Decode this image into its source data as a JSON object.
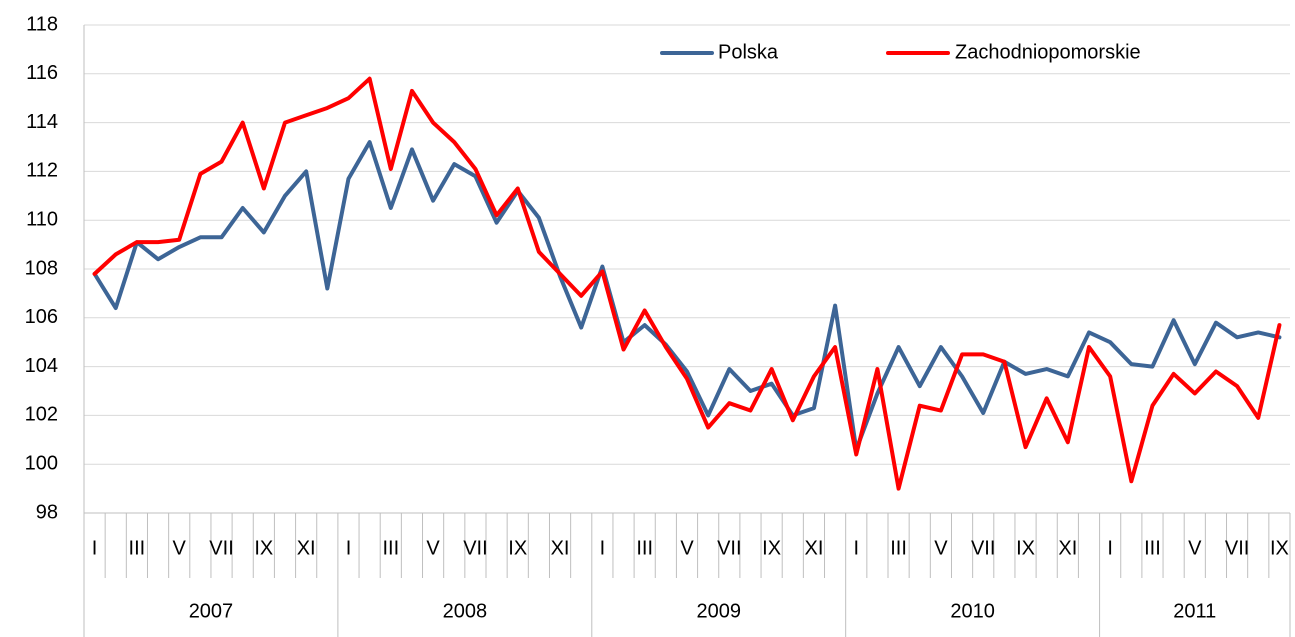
{
  "chart_data": {
    "type": "line",
    "categories": [
      "I",
      null,
      "III",
      null,
      "V",
      null,
      "VII",
      null,
      "IX",
      null,
      "XI",
      null,
      "I",
      null,
      "III",
      null,
      "V",
      null,
      "VII",
      null,
      "IX",
      null,
      "XI",
      null,
      "I",
      null,
      "III",
      null,
      "V",
      null,
      "VII",
      null,
      "IX",
      null,
      "XI",
      null,
      "I",
      null,
      "III",
      null,
      "V",
      null,
      "VII",
      null,
      "IX",
      null,
      "XI",
      null,
      "I",
      null,
      "III",
      null,
      "V",
      null,
      "VII",
      null,
      "IX"
    ],
    "category_groups": [
      "2007",
      "2008",
      "2009",
      "2010",
      "2011"
    ],
    "series": [
      {
        "name": "Polska",
        "color": "#3d6596",
        "values": [
          107.8,
          106.4,
          109.1,
          108.4,
          108.9,
          109.3,
          109.3,
          110.5,
          109.5,
          111.0,
          112.0,
          107.2,
          111.7,
          113.2,
          110.5,
          112.9,
          110.8,
          112.3,
          111.8,
          109.9,
          111.2,
          110.1,
          107.7,
          105.6,
          108.1,
          105.0,
          105.7,
          104.9,
          103.8,
          102.0,
          103.9,
          103.0,
          103.3,
          102.0,
          102.3,
          106.5,
          100.6,
          102.9,
          104.8,
          103.2,
          104.8,
          103.6,
          102.1,
          104.2,
          103.7,
          103.9,
          103.6,
          105.4,
          105.0,
          104.1,
          104.0,
          105.9,
          104.1,
          105.8,
          105.2,
          105.4,
          105.2
        ]
      },
      {
        "name": "Zachodniopomorskie",
        "color": "#ff0000",
        "values": [
          107.8,
          108.6,
          109.1,
          109.1,
          109.2,
          111.9,
          112.4,
          114.0,
          111.3,
          114.0,
          114.3,
          114.6,
          115.0,
          115.8,
          112.1,
          115.3,
          114.0,
          113.2,
          112.1,
          110.2,
          111.3,
          108.7,
          107.8,
          106.9,
          107.9,
          104.7,
          106.3,
          104.8,
          103.5,
          101.5,
          102.5,
          102.2,
          103.9,
          101.8,
          103.6,
          104.8,
          100.4,
          103.9,
          99.0,
          102.4,
          102.2,
          104.5,
          104.5,
          104.2,
          100.7,
          102.7,
          100.9,
          104.8,
          103.6,
          99.3,
          102.4,
          103.7,
          102.9,
          103.8,
          103.2,
          101.9,
          105.7
        ]
      }
    ],
    "ylim": [
      98,
      118
    ],
    "yticks": [
      98,
      100,
      102,
      104,
      106,
      108,
      110,
      112,
      114,
      116,
      118
    ],
    "grid": true,
    "legend": "top-right"
  }
}
